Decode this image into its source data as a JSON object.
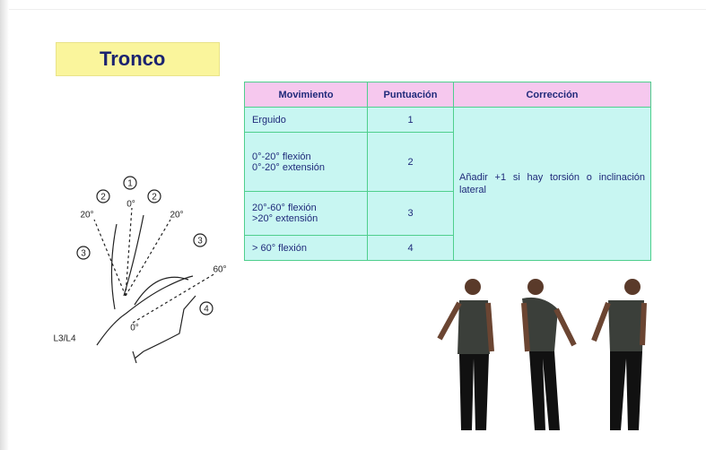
{
  "title": "Tronco",
  "table": {
    "headers": [
      "Movimiento",
      "Puntuación",
      "Corrección"
    ],
    "rows": [
      {
        "movement": [
          "Erguido"
        ],
        "score": "1"
      },
      {
        "movement": [
          "0°-20° flexión",
          "0°-20° extensión"
        ],
        "score": "2"
      },
      {
        "movement": [
          "20°-60° flexión",
          ">20° extensión"
        ],
        "score": "3"
      },
      {
        "movement": [
          "> 60° flexión"
        ],
        "score": "4"
      }
    ],
    "correction": "Añadir +1 si hay torsión o inclinación lateral"
  },
  "diagram": {
    "zones": [
      "1",
      "2",
      "2",
      "3",
      "3",
      "4"
    ],
    "angles": [
      "20°",
      "0°",
      "20°",
      "60°",
      "0°"
    ],
    "level": "L3/L4"
  }
}
